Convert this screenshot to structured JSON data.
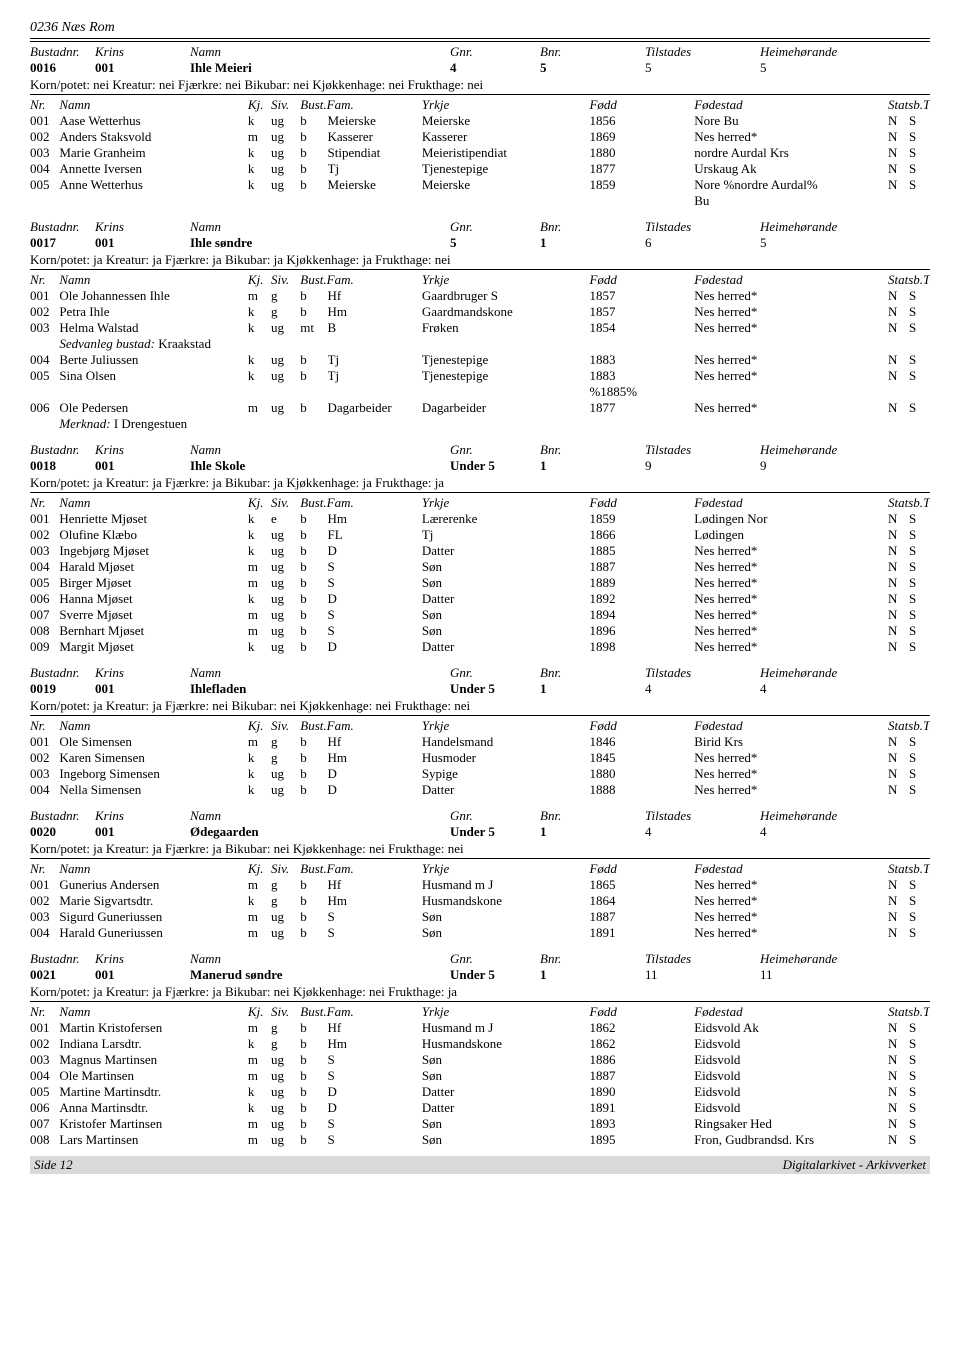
{
  "page_title": "0236 Næs Rom",
  "labels": {
    "bustadnr": "Bustadnr.",
    "krins": "Krins",
    "namn_h": "Namn",
    "gnr": "Gnr.",
    "bnr": "Bnr.",
    "tilstades": "Tilstades",
    "heim": "Heimehørande",
    "nr": "Nr.",
    "namn": "Namn",
    "kj": "Kj.",
    "siv": "Siv.",
    "bust": "Bust.",
    "fam": "Fam.",
    "yrkje": "Yrkje",
    "fodd": "Fødd",
    "fodestad": "Fødestad",
    "statsb_tru": "Statsb.Tru.",
    "sedvanleg": "Sedvanleg bustad:",
    "merknad": "Merknad:"
  },
  "footer_left": "Side 12",
  "footer_right": "Digitalarkivet - Arkivverket",
  "sections": [
    {
      "bustadnr": "0016",
      "krins": "001",
      "namn": "Ihle Meieri",
      "gnr": "4",
      "bnr": "5",
      "tilstades": "5",
      "heim": "5",
      "korn": "Korn/potet: nei Kreatur: nei Fjærkre: nei Bikubar: nei Kjøkkenhage: nei Frukthage: nei",
      "rows": [
        {
          "nr": "001",
          "namn": "Aase Wetterhus",
          "kj": "k",
          "siv": "ug",
          "bust": "b",
          "fam": "Meierske",
          "yrkje": "Meierske",
          "fodd": "1856",
          "fstad": "Nore Bu",
          "sb": "N",
          "tru": "S"
        },
        {
          "nr": "002",
          "namn": "Anders Staksvold",
          "kj": "m",
          "siv": "ug",
          "bust": "b",
          "fam": "Kasserer",
          "yrkje": "Kasserer",
          "fodd": "1869",
          "fstad": "Nes herred*",
          "sb": "N",
          "tru": "S"
        },
        {
          "nr": "003",
          "namn": "Marie Granheim",
          "kj": "k",
          "siv": "ug",
          "bust": "b",
          "fam": "Stipendiat",
          "yrkje": "Meieristipendiat",
          "fodd": "1880",
          "fstad": "nordre Aurdal Krs",
          "sb": "N",
          "tru": "S"
        },
        {
          "nr": "004",
          "namn": "Annette Iversen",
          "kj": "k",
          "siv": "ug",
          "bust": "b",
          "fam": "Tj",
          "yrkje": "Tjenestepige",
          "fodd": "1877",
          "fstad": "Urskaug Ak",
          "sb": "N",
          "tru": "S"
        },
        {
          "nr": "005",
          "namn": "Anne Wetterhus",
          "kj": "k",
          "siv": "ug",
          "bust": "b",
          "fam": "Meierske",
          "yrkje": "Meierske",
          "fodd": "1859",
          "fstad": "Nore %nordre Aurdal% Bu",
          "sb": "N",
          "tru": "S",
          "fstad2": "Bu",
          "fstad1": "Nore %nordre Aurdal%"
        }
      ]
    },
    {
      "bustadnr": "0017",
      "krins": "001",
      "namn": "Ihle søndre",
      "gnr": "5",
      "bnr": "1",
      "tilstades": "6",
      "heim": "5",
      "korn": "Korn/potet: ja Kreatur: ja Fjærkre: ja Bikubar: ja Kjøkkenhage: ja Frukthage: nei",
      "rows": [
        {
          "nr": "001",
          "namn": "Ole Johannessen Ihle",
          "kj": "m",
          "siv": "g",
          "bust": "b",
          "fam": "Hf",
          "yrkje": "Gaardbruger S",
          "fodd": "1857",
          "fstad": "Nes herred*",
          "sb": "N",
          "tru": "S"
        },
        {
          "nr": "002",
          "namn": "Petra Ihle",
          "kj": "k",
          "siv": "g",
          "bust": "b",
          "fam": "Hm",
          "yrkje": "Gaardmandskone",
          "fodd": "1857",
          "fstad": "Nes herred*",
          "sb": "N",
          "tru": "S"
        },
        {
          "nr": "003",
          "namn": "Helma Walstad",
          "kj": "k",
          "siv": "ug",
          "bust": "mt",
          "fam": "B",
          "yrkje": "Frøken",
          "fodd": "1854",
          "fstad": "Nes herred*",
          "sb": "N",
          "tru": "S",
          "sedvanleg": "Kraakstad"
        },
        {
          "nr": "004",
          "namn": "Berte Juliussen",
          "kj": "k",
          "siv": "ug",
          "bust": "b",
          "fam": "Tj",
          "yrkje": "Tjenestepige",
          "fodd": "1883",
          "fstad": "Nes herred*",
          "sb": "N",
          "tru": "S"
        },
        {
          "nr": "005",
          "namn": "Sina Olsen",
          "kj": "k",
          "siv": "ug",
          "bust": "b",
          "fam": "Tj",
          "yrkje": "Tjenestepige",
          "fodd": "1883 %1885%",
          "fstad": "Nes herred*",
          "sb": "N",
          "tru": "S",
          "fodd1": "1883",
          "fodd2": "%1885%"
        },
        {
          "nr": "006",
          "namn": "Ole Pedersen",
          "kj": "m",
          "siv": "ug",
          "bust": "b",
          "fam": "Dagarbeider",
          "yrkje": "Dagarbeider",
          "fodd": "1877",
          "fstad": "Nes herred*",
          "sb": "N",
          "tru": "S",
          "merknad": "I Drengestuen"
        }
      ]
    },
    {
      "bustadnr": "0018",
      "krins": "001",
      "namn": "Ihle Skole",
      "gnr": "Under 5",
      "bnr": "1",
      "tilstades": "9",
      "heim": "9",
      "korn": "Korn/potet: ja Kreatur: ja Fjærkre: ja Bikubar: ja Kjøkkenhage: ja Frukthage: ja",
      "rows": [
        {
          "nr": "001",
          "namn": "Henriette Mjøset",
          "kj": "k",
          "siv": "e",
          "bust": "b",
          "fam": "Hm",
          "yrkje": "Lærerenke",
          "fodd": "1859",
          "fstad": "Lødingen Nor",
          "sb": "N",
          "tru": "S"
        },
        {
          "nr": "002",
          "namn": "Olufine Klæbo",
          "kj": "k",
          "siv": "ug",
          "bust": "b",
          "fam": "FL",
          "yrkje": "Tj",
          "fodd": "1866",
          "fstad": "Lødingen",
          "sb": "N",
          "tru": "S"
        },
        {
          "nr": "003",
          "namn": "Ingebjørg Mjøset",
          "kj": "k",
          "siv": "ug",
          "bust": "b",
          "fam": "D",
          "yrkje": "Datter",
          "fodd": "1885",
          "fstad": "Nes herred*",
          "sb": "N",
          "tru": "S"
        },
        {
          "nr": "004",
          "namn": "Harald Mjøset",
          "kj": "m",
          "siv": "ug",
          "bust": "b",
          "fam": "S",
          "yrkje": "Søn",
          "fodd": "1887",
          "fstad": "Nes herred*",
          "sb": "N",
          "tru": "S"
        },
        {
          "nr": "005",
          "namn": "Birger Mjøset",
          "kj": "m",
          "siv": "ug",
          "bust": "b",
          "fam": "S",
          "yrkje": "Søn",
          "fodd": "1889",
          "fstad": "Nes herred*",
          "sb": "N",
          "tru": "S"
        },
        {
          "nr": "006",
          "namn": "Hanna Mjøset",
          "kj": "k",
          "siv": "ug",
          "bust": "b",
          "fam": "D",
          "yrkje": "Datter",
          "fodd": "1892",
          "fstad": "Nes herred*",
          "sb": "N",
          "tru": "S"
        },
        {
          "nr": "007",
          "namn": "Sverre Mjøset",
          "kj": "m",
          "siv": "ug",
          "bust": "b",
          "fam": "S",
          "yrkje": "Søn",
          "fodd": "1894",
          "fstad": "Nes herred*",
          "sb": "N",
          "tru": "S"
        },
        {
          "nr": "008",
          "namn": "Bernhart Mjøset",
          "kj": "m",
          "siv": "ug",
          "bust": "b",
          "fam": "S",
          "yrkje": "Søn",
          "fodd": "1896",
          "fstad": "Nes herred*",
          "sb": "N",
          "tru": "S"
        },
        {
          "nr": "009",
          "namn": "Margit Mjøset",
          "kj": "k",
          "siv": "ug",
          "bust": "b",
          "fam": "D",
          "yrkje": "Datter",
          "fodd": "1898",
          "fstad": "Nes herred*",
          "sb": "N",
          "tru": "S"
        }
      ]
    },
    {
      "bustadnr": "0019",
      "krins": "001",
      "namn": "Ihlefladen",
      "gnr": "Under 5",
      "bnr": "1",
      "tilstades": "4",
      "heim": "4",
      "korn": "Korn/potet: ja Kreatur: ja Fjærkre: nei Bikubar: nei Kjøkkenhage: nei Frukthage: nei",
      "rows": [
        {
          "nr": "001",
          "namn": "Ole Simensen",
          "kj": "m",
          "siv": "g",
          "bust": "b",
          "fam": "Hf",
          "yrkje": "Handelsmand",
          "fodd": "1846",
          "fstad": "Birid Krs",
          "sb": "N",
          "tru": "S"
        },
        {
          "nr": "002",
          "namn": "Karen Simensen",
          "kj": "k",
          "siv": "g",
          "bust": "b",
          "fam": "Hm",
          "yrkje": "Husmoder",
          "fodd": "1845",
          "fstad": "Nes herred*",
          "sb": "N",
          "tru": "S"
        },
        {
          "nr": "003",
          "namn": "Ingeborg Simensen",
          "kj": "k",
          "siv": "ug",
          "bust": "b",
          "fam": "D",
          "yrkje": "Sypige",
          "fodd": "1880",
          "fstad": "Nes herred*",
          "sb": "N",
          "tru": "S"
        },
        {
          "nr": "004",
          "namn": "Nella Simensen",
          "kj": "k",
          "siv": "ug",
          "bust": "b",
          "fam": "D",
          "yrkje": "Datter",
          "fodd": "1888",
          "fstad": "Nes herred*",
          "sb": "N",
          "tru": "S"
        }
      ]
    },
    {
      "bustadnr": "0020",
      "krins": "001",
      "namn": "Ødegaarden",
      "gnr": "Under 5",
      "bnr": "1",
      "tilstades": "4",
      "heim": "4",
      "korn": "Korn/potet: ja Kreatur: ja Fjærkre: ja Bikubar: nei Kjøkkenhage: nei Frukthage: nei",
      "rows": [
        {
          "nr": "001",
          "namn": "Gunerius Andersen",
          "kj": "m",
          "siv": "g",
          "bust": "b",
          "fam": "Hf",
          "yrkje": "Husmand m J",
          "fodd": "1865",
          "fstad": "Nes herred*",
          "sb": "N",
          "tru": "S"
        },
        {
          "nr": "002",
          "namn": "Marie Sigvartsdtr.",
          "kj": "k",
          "siv": "g",
          "bust": "b",
          "fam": "Hm",
          "yrkje": "Husmandskone",
          "fodd": "1864",
          "fstad": "Nes herred*",
          "sb": "N",
          "tru": "S"
        },
        {
          "nr": "003",
          "namn": "Sigurd Guneriussen",
          "kj": "m",
          "siv": "ug",
          "bust": "b",
          "fam": "S",
          "yrkje": "Søn",
          "fodd": "1887",
          "fstad": "Nes herred*",
          "sb": "N",
          "tru": "S"
        },
        {
          "nr": "004",
          "namn": "Harald Guneriussen",
          "kj": "m",
          "siv": "ug",
          "bust": "b",
          "fam": "S",
          "yrkje": "Søn",
          "fodd": "1891",
          "fstad": "Nes herred*",
          "sb": "N",
          "tru": "S"
        }
      ]
    },
    {
      "bustadnr": "0021",
      "krins": "001",
      "namn": "Manerud søndre",
      "gnr": "Under 5",
      "bnr": "1",
      "tilstades": "11",
      "heim": "11",
      "korn": "Korn/potet: ja Kreatur: ja Fjærkre: ja Bikubar: nei Kjøkkenhage: nei Frukthage: ja",
      "rows": [
        {
          "nr": "001",
          "namn": "Martin Kristofersen",
          "kj": "m",
          "siv": "g",
          "bust": "b",
          "fam": "Hf",
          "yrkje": "Husmand m J",
          "fodd": "1862",
          "fstad": "Eidsvold Ak",
          "sb": "N",
          "tru": "S"
        },
        {
          "nr": "002",
          "namn": "Indiana Larsdtr.",
          "kj": "k",
          "siv": "g",
          "bust": "b",
          "fam": "Hm",
          "yrkje": "Husmandskone",
          "fodd": "1862",
          "fstad": "Eidsvold",
          "sb": "N",
          "tru": "S"
        },
        {
          "nr": "003",
          "namn": "Magnus Martinsen",
          "kj": "m",
          "siv": "ug",
          "bust": "b",
          "fam": "S",
          "yrkje": "Søn",
          "fodd": "1886",
          "fstad": "Eidsvold",
          "sb": "N",
          "tru": "S"
        },
        {
          "nr": "004",
          "namn": "Ole Martinsen",
          "kj": "m",
          "siv": "ug",
          "bust": "b",
          "fam": "S",
          "yrkje": "Søn",
          "fodd": "1887",
          "fstad": "Eidsvold",
          "sb": "N",
          "tru": "S"
        },
        {
          "nr": "005",
          "namn": "Martine Martinsdtr.",
          "kj": "k",
          "siv": "ug",
          "bust": "b",
          "fam": "D",
          "yrkje": "Datter",
          "fodd": "1890",
          "fstad": "Eidsvold",
          "sb": "N",
          "tru": "S"
        },
        {
          "nr": "006",
          "namn": "Anna Martinsdtr.",
          "kj": "k",
          "siv": "ug",
          "bust": "b",
          "fam": "D",
          "yrkje": "Datter",
          "fodd": "1891",
          "fstad": "Eidsvold",
          "sb": "N",
          "tru": "S"
        },
        {
          "nr": "007",
          "namn": "Kristofer Martinsen",
          "kj": "m",
          "siv": "ug",
          "bust": "b",
          "fam": "S",
          "yrkje": "Søn",
          "fodd": "1893",
          "fstad": "Ringsaker Hed",
          "sb": "N",
          "tru": "S"
        },
        {
          "nr": "008",
          "namn": "Lars Martinsen",
          "kj": "m",
          "siv": "ug",
          "bust": "b",
          "fam": "S",
          "yrkje": "Søn",
          "fodd": "1895",
          "fstad": "Fron, Gudbrandsd. Krs",
          "sb": "N",
          "tru": "S"
        }
      ]
    }
  ]
}
